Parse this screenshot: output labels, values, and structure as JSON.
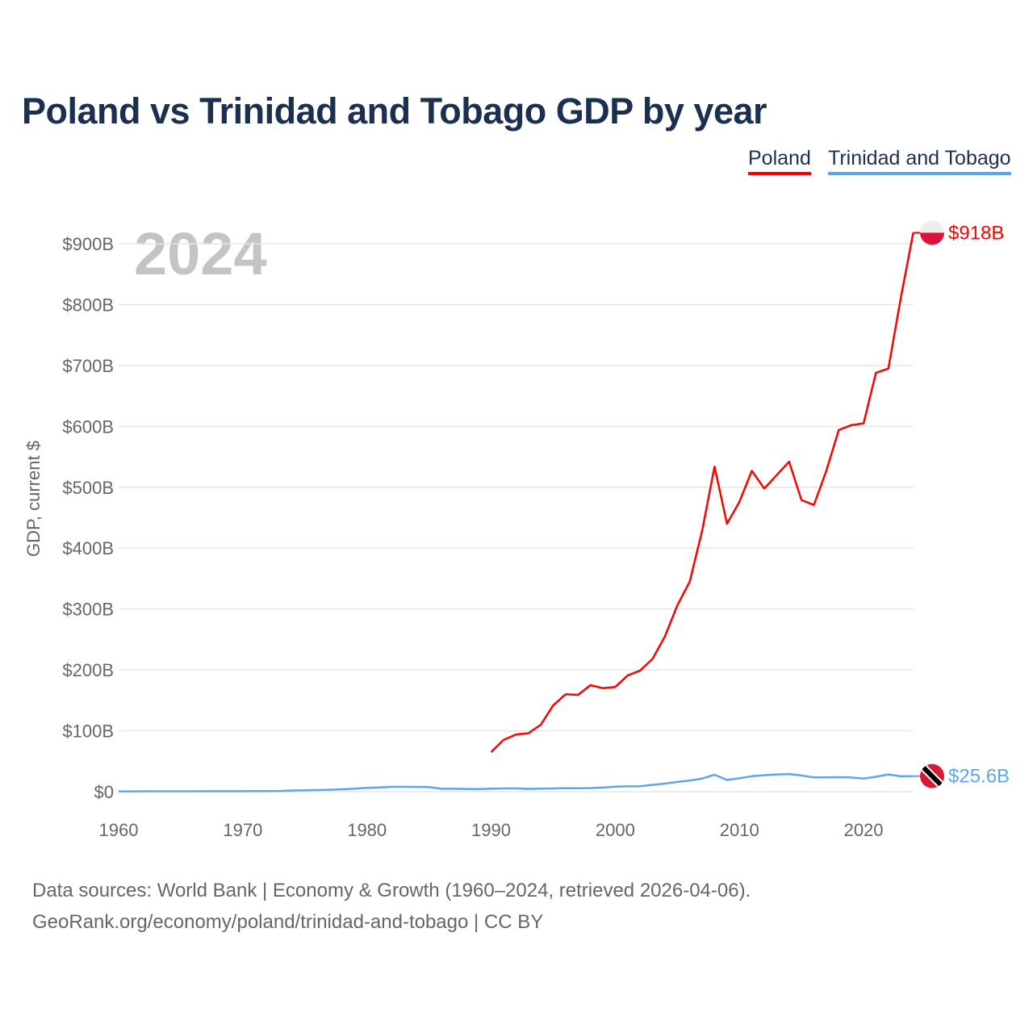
{
  "chart_data": {
    "type": "line",
    "title": "Poland vs Trinidad and Tobago GDP by year",
    "ylabel": "GDP, current $",
    "xlabel": "",
    "year_label": "2024",
    "xlim": [
      1960,
      2024
    ],
    "ylim": [
      0,
      900
    ],
    "x_ticks": [
      "1960",
      "1970",
      "1980",
      "1990",
      "2000",
      "2010",
      "2020"
    ],
    "y_ticks": [
      {
        "v": 0,
        "label": "$0"
      },
      {
        "v": 100,
        "label": "$100B"
      },
      {
        "v": 200,
        "label": "$200B"
      },
      {
        "v": 300,
        "label": "$300B"
      },
      {
        "v": 400,
        "label": "$400B"
      },
      {
        "v": 500,
        "label": "$500B"
      },
      {
        "v": 600,
        "label": "$600B"
      },
      {
        "v": 700,
        "label": "$700B"
      },
      {
        "v": 800,
        "label": "$800B"
      },
      {
        "v": 900,
        "label": "$900B"
      }
    ],
    "grid": true,
    "legend_placement": "top-right",
    "series": [
      {
        "name": "Poland",
        "color": "#ff0000",
        "flag_colors": [
          "#eeeeee",
          "#dc143c"
        ],
        "end_label": "$918B",
        "start_year": 1990,
        "values": [
          65,
          85,
          94,
          96,
          110,
          142,
          160,
          159,
          175,
          170,
          172,
          191,
          199,
          218,
          255,
          306,
          345,
          429,
          534,
          440,
          476,
          527,
          498,
          520,
          542,
          479,
          471,
          527,
          594,
          602,
          605,
          688,
          695,
          811,
          918
        ]
      },
      {
        "name": "Trinidad and Tobago",
        "color": "#5ea6ea",
        "flag_colors": [
          "#da1a35",
          "#000000",
          "#ffffff"
        ],
        "end_label": "$25.6B",
        "start_year": 1960,
        "values": [
          0.5,
          0.55,
          0.6,
          0.6,
          0.65,
          0.7,
          0.7,
          0.75,
          0.75,
          0.8,
          0.8,
          0.9,
          1.0,
          1.2,
          2.0,
          2.4,
          2.7,
          3.2,
          4.0,
          5.0,
          6.2,
          7.0,
          8.0,
          8.0,
          7.8,
          7.5,
          4.8,
          4.8,
          4.5,
          4.3,
          5.0,
          5.3,
          5.4,
          4.7,
          5.0,
          5.3,
          5.8,
          5.7,
          6.0,
          6.8,
          8.2,
          8.8,
          9.0,
          11.3,
          13.3,
          16.0,
          18.4,
          21.6,
          27.9,
          19.2,
          22.2,
          25.4,
          27.0,
          28.4,
          29.0,
          26.6,
          23.5,
          23.5,
          23.8,
          23.3,
          21.6,
          24.5,
          28.3,
          25.3,
          25.6
        ]
      }
    ]
  },
  "source": {
    "line1": "Data sources: World Bank | Economy & Growth (1960–2024, retrieved 2026-04-06).",
    "line2": "GeoRank.org/economy/poland/trinidad-and-tobago | CC BY"
  }
}
